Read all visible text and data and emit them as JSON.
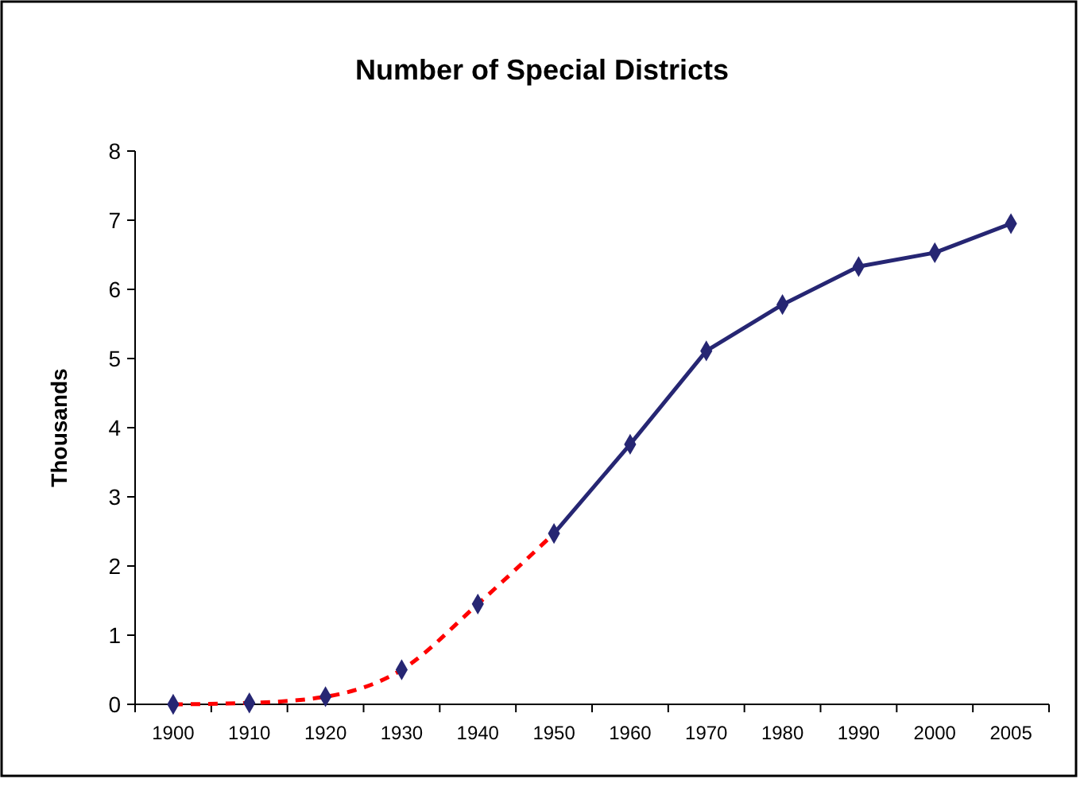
{
  "chart_data": {
    "type": "line",
    "title": "Number of Special Districts",
    "ylabel": "Thousands",
    "categories": [
      "1900",
      "1910",
      "1920",
      "1930",
      "1940",
      "1950",
      "1960",
      "1970",
      "1980",
      "1990",
      "2000",
      "2005"
    ],
    "series": [
      {
        "color": "#ff0000",
        "line_style": "dashed",
        "marker": "none",
        "values": [
          0,
          0.02,
          0.11,
          0.5,
          1.45,
          2.47,
          null,
          null,
          null,
          null,
          null,
          null
        ]
      },
      {
        "color": "#262673",
        "line_style": "solid",
        "marker": "diamond",
        "values": [
          null,
          null,
          null,
          null,
          null,
          2.47,
          3.76,
          5.11,
          5.78,
          6.33,
          6.53,
          6.95
        ]
      },
      {
        "type": "scatter",
        "color": "#262673",
        "marker": "diamond",
        "values": [
          0,
          0.02,
          0.11,
          0.5,
          1.45,
          null,
          null,
          null,
          null,
          null,
          null,
          null
        ]
      }
    ],
    "ylim": [
      0,
      8
    ],
    "yticks": [
      0,
      1,
      2,
      3,
      4,
      5,
      6,
      7,
      8
    ],
    "grid": false
  }
}
